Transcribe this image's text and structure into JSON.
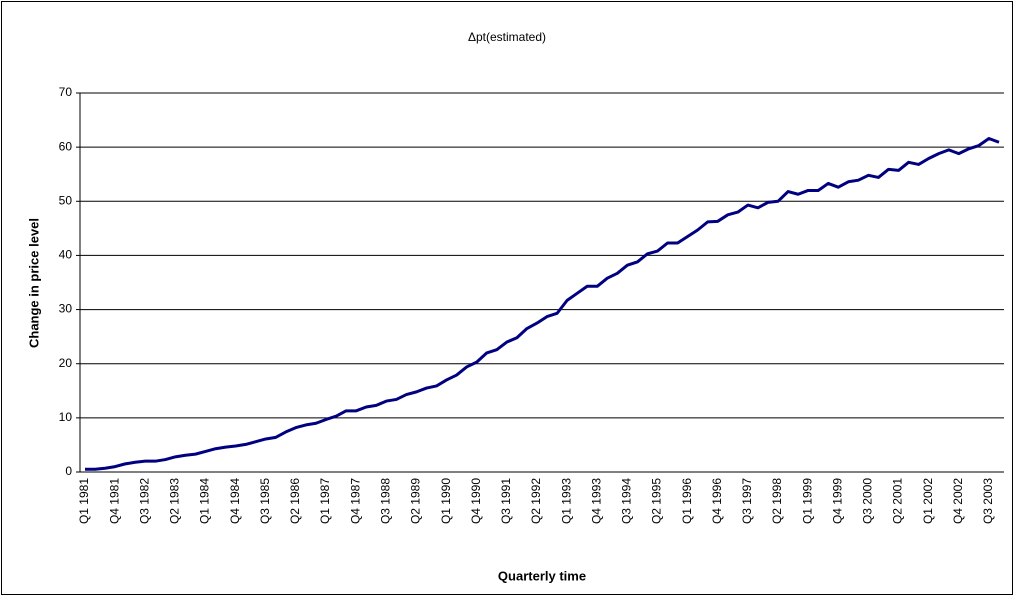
{
  "chart_data": {
    "type": "line",
    "title": "Δpt(estimated)",
    "y_label": "Change in price level",
    "x_label": "Quarterly time",
    "categories": [
      "Q1 1981",
      null,
      null,
      "Q4 1981",
      null,
      null,
      "Q3 1982",
      null,
      null,
      "Q2 1983",
      null,
      null,
      "Q1 1984",
      null,
      null,
      "Q4 1984",
      null,
      null,
      "Q3 1985",
      null,
      null,
      "Q2 1986",
      null,
      null,
      "Q1 1987",
      null,
      null,
      "Q4 1987",
      null,
      null,
      "Q3 1988",
      null,
      null,
      "Q2 1989",
      null,
      null,
      "Q1 1990",
      null,
      null,
      "Q4 1990",
      null,
      null,
      "Q3 1991",
      null,
      null,
      "Q2 1992",
      null,
      null,
      "Q1 1993",
      null,
      null,
      "Q4 1993",
      null,
      null,
      "Q3 1994",
      null,
      null,
      "Q2 1995",
      null,
      null,
      "Q1 1996",
      null,
      null,
      "Q4 1996",
      null,
      null,
      "Q3 1997",
      null,
      null,
      "Q2 1998",
      null,
      null,
      "Q1 1999",
      null,
      null,
      "Q4 1999",
      null,
      null,
      "Q3 2000",
      null,
      null,
      "Q2 2001",
      null,
      null,
      "Q1 2002",
      null,
      null,
      "Q4 2002",
      null,
      null,
      "Q3 2003",
      null
    ],
    "series": [
      {
        "color": "#000080",
        "values": [
          0.5,
          0.5,
          0.7,
          1.0,
          1.5,
          1.8,
          2.0,
          2.0,
          2.3,
          2.8,
          3.1,
          3.3,
          3.8,
          4.3,
          4.6,
          4.8,
          5.1,
          5.6,
          6.1,
          6.4,
          7.4,
          8.2,
          8.7,
          9.0,
          9.7,
          10.3,
          11.3,
          11.3,
          12.0,
          12.3,
          13.1,
          13.4,
          14.3,
          14.8,
          15.5,
          15.9,
          17.0,
          17.9,
          19.4,
          20.3,
          22.0,
          22.6,
          24.0,
          24.8,
          26.5,
          27.5,
          28.7,
          29.3,
          31.7,
          33.0,
          34.3,
          34.3,
          35.8,
          36.7,
          38.2,
          38.8,
          40.3,
          40.8,
          42.3,
          42.3,
          43.5,
          44.7,
          46.2,
          46.3,
          47.5,
          48.0,
          49.3,
          48.8,
          49.8,
          50.0,
          51.8,
          51.3,
          52.0,
          52.0,
          53.3,
          52.6,
          53.6,
          53.9,
          54.8,
          54.4,
          55.9,
          55.7,
          57.2,
          56.8,
          57.9,
          58.8,
          59.5,
          58.8,
          59.7,
          60.3,
          61.6,
          60.9
        ]
      }
    ],
    "ylim": [
      0,
      70
    ],
    "yticks": [
      0,
      10,
      20,
      30,
      40,
      50,
      60,
      70
    ],
    "grid": true
  }
}
